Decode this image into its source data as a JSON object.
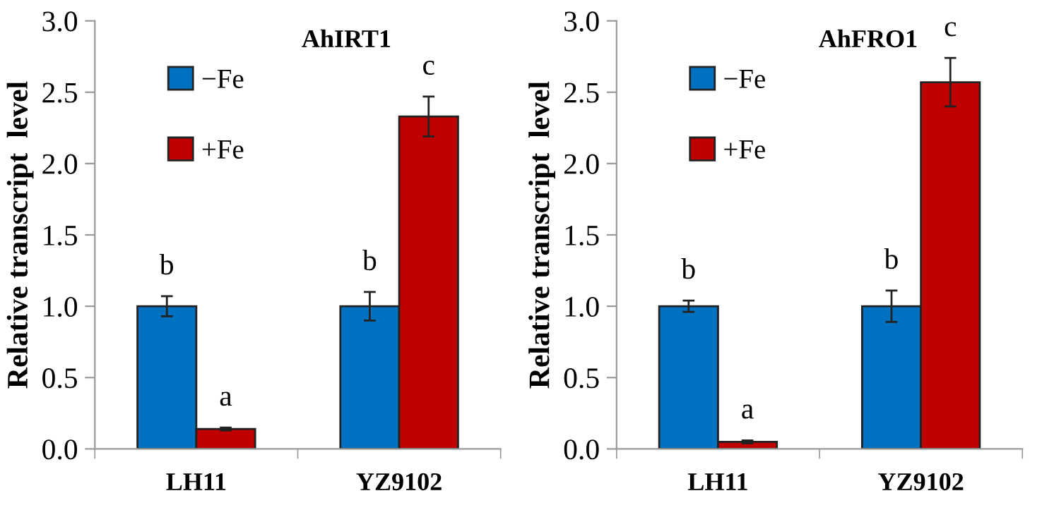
{
  "chart_data": [
    {
      "type": "bar",
      "title": "AhIRT1",
      "ylabel": "Relative transcript  level",
      "categories": [
        "LH11",
        "YZ9102"
      ],
      "ylim": [
        0,
        3.0
      ],
      "yticks": [
        {
          "value": 0,
          "label": "0.0"
        },
        {
          "value": 0.5,
          "label": "0.5"
        },
        {
          "value": 1.0,
          "label": "1.0"
        },
        {
          "value": 1.5,
          "label": "1.5"
        },
        {
          "value": 2.0,
          "label": "2.0"
        },
        {
          "value": 2.5,
          "label": "2.5"
        },
        {
          "value": 3.0,
          "label": "3.0"
        }
      ],
      "grid": false,
      "legend": "top left",
      "series": [
        {
          "name": "−Fe",
          "color": "#0070c0",
          "values": [
            1.0,
            1.0
          ],
          "errors": [
            0.07,
            0.1
          ],
          "value_labels": [
            "b",
            "b"
          ]
        },
        {
          "name": "+Fe",
          "color": "#c00000",
          "values": [
            0.14,
            2.33
          ],
          "errors": [
            0.01,
            0.14
          ],
          "value_labels": [
            "a",
            "c"
          ]
        }
      ]
    },
    {
      "type": "bar",
      "title": "AhFRO1",
      "ylabel": "Relative transcript  level",
      "categories": [
        "LH11",
        "YZ9102"
      ],
      "ylim": [
        0,
        3.0
      ],
      "yticks": [
        {
          "value": 0,
          "label": "0.0"
        },
        {
          "value": 0.5,
          "label": "0.5"
        },
        {
          "value": 1.0,
          "label": "1.0"
        },
        {
          "value": 1.5,
          "label": "1.5"
        },
        {
          "value": 2.0,
          "label": "2.0"
        },
        {
          "value": 2.5,
          "label": "2.5"
        },
        {
          "value": 3.0,
          "label": "3.0"
        }
      ],
      "grid": false,
      "legend": "top left",
      "series": [
        {
          "name": "−Fe",
          "color": "#0070c0",
          "values": [
            1.0,
            1.0
          ],
          "errors": [
            0.04,
            0.11
          ],
          "value_labels": [
            "b",
            "b"
          ]
        },
        {
          "name": "+Fe",
          "color": "#c00000",
          "values": [
            0.05,
            2.57
          ],
          "errors": [
            0.01,
            0.17
          ],
          "value_labels": [
            "a",
            "c"
          ]
        }
      ]
    }
  ]
}
